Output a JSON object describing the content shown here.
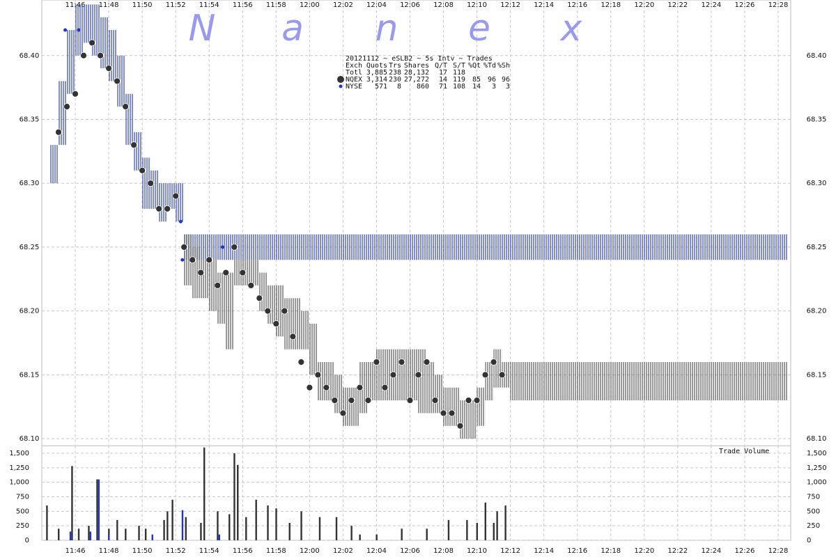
{
  "chart_data": [
    {
      "type": "price",
      "watermark": [
        "N",
        "a",
        "n",
        "e",
        "x"
      ],
      "stats": {
        "title": "20121112 ~ eSLB2 ~ 5s Intv ~ Trades",
        "header": [
          "Exch",
          "Quots",
          "Trs",
          "Shares",
          "Q/T",
          "S/T",
          "%Qt",
          "%Td",
          "%Sh"
        ],
        "rows": [
          [
            "Totl",
            "3,885",
            "238",
            "28,132",
            "17",
            "118"
          ],
          [
            "NQEX",
            "3,314",
            "230",
            "27,272",
            "14",
            "119",
            "85",
            "96",
            "96"
          ],
          [
            "NYSE",
            "571",
            "8",
            "860",
            "71",
            "108",
            "14",
            "3",
            "3"
          ]
        ]
      },
      "xlim": [
        704,
        748.75
      ],
      "xticks": [
        {
          "value": 706,
          "label": "11:46"
        },
        {
          "value": 708,
          "label": "11:48"
        },
        {
          "value": 710,
          "label": "11:50"
        },
        {
          "value": 712,
          "label": "11:52"
        },
        {
          "value": 714,
          "label": "11:54"
        },
        {
          "value": 716,
          "label": "11:56"
        },
        {
          "value": 718,
          "label": "11:58"
        },
        {
          "value": 720,
          "label": "12:00"
        },
        {
          "value": 722,
          "label": "12:02"
        },
        {
          "value": 724,
          "label": "12:04"
        },
        {
          "value": 726,
          "label": "12:06"
        },
        {
          "value": 728,
          "label": "12:08"
        },
        {
          "value": 730,
          "label": "12:10"
        },
        {
          "value": 732,
          "label": "12:12"
        },
        {
          "value": 734,
          "label": "12:14"
        },
        {
          "value": 736,
          "label": "12:16"
        },
        {
          "value": 738,
          "label": "12:18"
        },
        {
          "value": 740,
          "label": "12:20"
        },
        {
          "value": 742,
          "label": "12:22"
        },
        {
          "value": 744,
          "label": "12:24"
        },
        {
          "value": 746,
          "label": "12:26"
        },
        {
          "value": 748,
          "label": "12:28"
        }
      ],
      "ylim": [
        68.095,
        68.443
      ],
      "yticks": [
        {
          "value": 68.1,
          "label": "68.10"
        },
        68.15,
        {
          "value": 68.2,
          "label": "68.20"
        },
        68.25,
        {
          "value": 68.3,
          "label": "68.30"
        },
        68.35,
        {
          "value": 68.4,
          "label": "68.40"
        }
      ],
      "grid": true,
      "quotes": [
        {
          "name": "NYSE",
          "color": "#3f4fb0",
          "x": [
            704.5,
            705,
            705.5,
            706,
            706.5,
            707,
            707.5,
            708,
            708.5,
            709,
            709.5,
            710,
            710.5,
            711,
            711.5,
            712,
            712.5,
            748.5
          ],
          "bid": [
            68.3,
            68.33,
            68.37,
            68.4,
            68.41,
            68.4,
            68.39,
            68.38,
            68.36,
            68.33,
            68.31,
            68.28,
            68.28,
            68.27,
            68.28,
            68.27,
            68.24,
            68.24
          ],
          "ask": [
            68.33,
            68.38,
            68.42,
            68.44,
            68.44,
            68.44,
            68.43,
            68.42,
            68.4,
            68.37,
            68.34,
            68.32,
            68.31,
            68.3,
            68.3,
            68.3,
            68.26,
            68.26
          ]
        },
        {
          "name": "NQEX",
          "color": "#333333",
          "x": [
            712.5,
            713,
            713.5,
            714,
            714.5,
            715,
            715.5,
            716,
            716.5,
            717,
            717.5,
            718,
            718.5,
            719,
            719.5,
            720,
            720.5,
            721,
            721.5,
            722,
            722.5,
            723,
            723.5,
            724,
            724.5,
            725,
            725.5,
            726,
            726.5,
            727,
            727.5,
            728,
            728.5,
            729,
            729.5,
            730,
            730.5,
            731,
            731.5,
            732,
            748.5
          ],
          "bid": [
            68.22,
            68.21,
            68.21,
            68.2,
            68.19,
            68.17,
            68.22,
            68.22,
            68.22,
            68.2,
            68.19,
            68.18,
            68.17,
            68.17,
            68.17,
            68.15,
            68.13,
            68.13,
            68.12,
            68.11,
            68.11,
            68.12,
            68.13,
            68.13,
            68.13,
            68.13,
            68.13,
            68.13,
            68.12,
            68.12,
            68.12,
            68.11,
            68.11,
            68.1,
            68.1,
            68.11,
            68.13,
            68.14,
            68.14,
            68.13,
            68.13
          ],
          "ask": [
            68.26,
            68.25,
            68.24,
            68.24,
            68.23,
            68.23,
            68.24,
            68.24,
            68.24,
            68.23,
            68.22,
            68.22,
            68.21,
            68.21,
            68.2,
            68.19,
            68.16,
            68.16,
            68.15,
            68.14,
            68.14,
            68.16,
            68.16,
            68.17,
            68.17,
            68.17,
            68.17,
            68.17,
            68.17,
            68.16,
            68.15,
            68.14,
            68.14,
            68.13,
            68.13,
            68.14,
            68.16,
            68.17,
            68.16,
            68.16,
            68.16
          ]
        }
      ],
      "series": [
        {
          "name": "NQEX",
          "color": "#333333",
          "x": [
            705,
            705.5,
            706,
            706.5,
            707,
            707.5,
            708,
            708.5,
            709,
            709.5,
            710,
            710.5,
            711,
            711.5,
            712,
            712.5,
            713,
            713.5,
            714,
            714.5,
            715,
            715.5,
            716,
            716.5,
            717,
            717.5,
            718,
            718.5,
            719,
            719.5,
            720,
            720.5,
            721,
            721.5,
            722,
            722.5,
            723,
            723.5,
            724,
            724.5,
            725,
            725.5,
            726,
            726.5,
            727,
            727.5,
            728,
            728.5,
            729,
            729.5,
            730,
            730.5,
            731,
            731.5
          ],
          "values": [
            68.34,
            68.36,
            68.37,
            68.4,
            68.41,
            68.4,
            68.39,
            68.38,
            68.36,
            68.33,
            68.31,
            68.3,
            68.28,
            68.28,
            68.29,
            68.25,
            68.24,
            68.23,
            68.24,
            68.22,
            68.23,
            68.25,
            68.23,
            68.22,
            68.21,
            68.2,
            68.19,
            68.2,
            68.18,
            68.16,
            68.14,
            68.15,
            68.14,
            68.13,
            68.12,
            68.13,
            68.14,
            68.13,
            68.16,
            68.14,
            68.15,
            68.16,
            68.13,
            68.15,
            68.16,
            68.13,
            68.12,
            68.12,
            68.11,
            68.13,
            68.13,
            68.15,
            68.16,
            68.15
          ]
        },
        {
          "name": "NYSE",
          "color": "#2233cc",
          "x": [
            705.4,
            706.2,
            712.3,
            712.4,
            714.8
          ],
          "values": [
            68.42,
            68.42,
            68.27,
            68.24,
            68.25
          ]
        }
      ]
    },
    {
      "type": "volume",
      "title": "Trade Volume",
      "xlim": [
        704,
        748.75
      ],
      "xticks": [
        {
          "value": 706,
          "label": "11:46"
        },
        {
          "value": 708,
          "label": "11:48"
        },
        {
          "value": 710,
          "label": "11:50"
        },
        {
          "value": 712,
          "label": "11:52"
        },
        {
          "value": 714,
          "label": "11:54"
        },
        {
          "value": 716,
          "label": "11:56"
        },
        {
          "value": 718,
          "label": "11:58"
        },
        {
          "value": 720,
          "label": "12:00"
        },
        {
          "value": 722,
          "label": "12:02"
        },
        {
          "value": 724,
          "label": "12:04"
        },
        {
          "value": 726,
          "label": "12:06"
        },
        {
          "value": 728,
          "label": "12:08"
        },
        {
          "value": 730,
          "label": "12:10"
        },
        {
          "value": 732,
          "label": "12:12"
        },
        {
          "value": 734,
          "label": "12:14"
        },
        {
          "value": 736,
          "label": "12:16"
        },
        {
          "value": 738,
          "label": "12:18"
        },
        {
          "value": 740,
          "label": "12:20"
        },
        {
          "value": 742,
          "label": "12:22"
        },
        {
          "value": 744,
          "label": "12:24"
        },
        {
          "value": 746,
          "label": "12:26"
        },
        {
          "value": 748,
          "label": "12:28"
        }
      ],
      "ylim": [
        0,
        1630
      ],
      "yticks": [
        0,
        250,
        500,
        750,
        {
          "value": 1000,
          "label": "1,000"
        },
        {
          "value": 1250,
          "label": "1,250"
        },
        {
          "value": 1500,
          "label": "1,500"
        }
      ],
      "grid": true,
      "series": [
        {
          "name": "NQEX",
          "color": "#333333",
          "x": [
            704.3,
            705,
            705.8,
            706.2,
            706.8,
            707.3,
            708,
            708.5,
            709,
            709.8,
            710.2,
            711.3,
            711.5,
            711.8,
            712.6,
            713.5,
            713.7,
            714.5,
            715.2,
            715.5,
            715.7,
            716.2,
            716.8,
            717.5,
            718,
            718.8,
            719.5,
            720.6,
            721.6,
            722.5,
            723,
            724,
            725.5,
            727,
            728.3,
            729.4,
            730,
            730.5,
            731,
            731.2,
            731.7
          ],
          "values": [
            600,
            200,
            1280,
            200,
            250,
            1050,
            200,
            350,
            200,
            250,
            200,
            350,
            500,
            700,
            400,
            300,
            1600,
            500,
            450,
            1500,
            1300,
            400,
            700,
            600,
            550,
            300,
            500,
            400,
            400,
            250,
            100,
            100,
            200,
            200,
            350,
            350,
            300,
            650,
            300,
            500,
            600
          ]
        },
        {
          "name": "NYSE",
          "color": "#2233cc",
          "x": [
            705.7,
            706.9,
            707.4,
            708,
            710.6,
            712.4,
            714.6
          ],
          "values": [
            150,
            150,
            1050,
            100,
            100,
            520,
            100
          ]
        }
      ]
    }
  ]
}
